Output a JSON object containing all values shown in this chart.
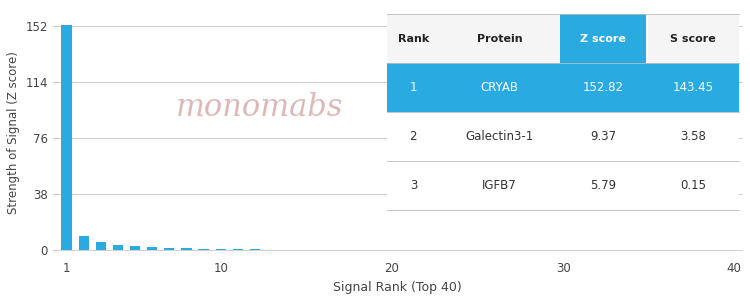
{
  "title": "",
  "xlabel": "Signal Rank (Top 40)",
  "ylabel": "Strength of Signal (Z score)",
  "xlim": [
    0.2,
    40.5
  ],
  "ylim": [
    -5,
    165
  ],
  "yticks": [
    0,
    38,
    76,
    114,
    152
  ],
  "xticks": [
    1,
    10,
    20,
    30,
    40
  ],
  "bar_color": "#29ABE2",
  "background_color": "#ffffff",
  "grid_color": "#d0d0d0",
  "n_bars": 40,
  "bar_values": [
    152.82,
    9.37,
    5.79,
    3.8,
    2.9,
    2.2,
    1.7,
    1.3,
    1.0,
    0.8,
    0.65,
    0.52,
    0.42,
    0.34,
    0.28,
    0.23,
    0.19,
    0.16,
    0.13,
    0.11,
    0.09,
    0.08,
    0.07,
    0.06,
    0.055,
    0.05,
    0.045,
    0.04,
    0.038,
    0.035,
    0.033,
    0.031,
    0.029,
    0.027,
    0.025,
    0.024,
    0.022,
    0.021,
    0.02,
    0.019
  ],
  "table": {
    "headers": [
      "Rank",
      "Protein",
      "Z score",
      "S score"
    ],
    "zscore_header_bg": "#29ABE2",
    "zscore_header_fg": "#ffffff",
    "row1_bg": "#29ABE2",
    "row1_fg": "#ffffff",
    "row_bg": "#ffffff",
    "row_fg": "#333333",
    "rows": [
      [
        "1",
        "CRYAB",
        "152.82",
        "143.45"
      ],
      [
        "2",
        "Galectin3-1",
        "9.37",
        "3.58"
      ],
      [
        "3",
        "IGFB7",
        "5.79",
        "0.15"
      ]
    ]
  },
  "watermark_color": "#ddb8b8",
  "watermark_fontsize": 22
}
